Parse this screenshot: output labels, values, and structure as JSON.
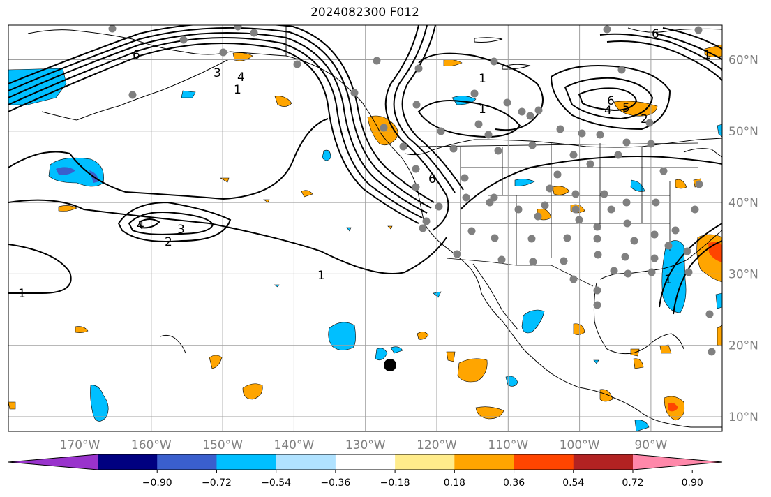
{
  "title": "2024082300 F012",
  "map": {
    "lon_ticks": [
      {
        "lon": -170,
        "label": "170°W"
      },
      {
        "lon": -160,
        "label": "160°W"
      },
      {
        "lon": -150,
        "label": "150°W"
      },
      {
        "lon": -140,
        "label": "140°W"
      },
      {
        "lon": -130,
        "label": "130°W"
      },
      {
        "lon": -120,
        "label": "120°W"
      },
      {
        "lon": -110,
        "label": "110°W"
      },
      {
        "lon": -100,
        "label": "100°W"
      },
      {
        "lon": -90,
        "label": "90°W"
      }
    ],
    "lat_ticks": [
      {
        "lat": 10,
        "label": "10°N"
      },
      {
        "lat": 20,
        "label": "20°N"
      },
      {
        "lat": 30,
        "label": "30°N"
      },
      {
        "lat": 40,
        "label": "40°N"
      },
      {
        "lat": 50,
        "label": "50°N"
      },
      {
        "lat": 60,
        "label": "60°N"
      }
    ],
    "contour_labels": [
      "1",
      "2",
      "3",
      "4",
      "5",
      "6"
    ],
    "grid_color": "#a0a0a0",
    "station_color": "#808080",
    "storm_marker_color": "#000000"
  },
  "colorbar": {
    "colors": [
      "#9933cc",
      "#000080",
      "#3a5fcd",
      "#00bfff",
      "#b0e2ff",
      "#ffffff",
      "#ffec8b",
      "#ffa500",
      "#ff4500",
      "#b22222",
      "#ff88aa"
    ],
    "tick_labels": [
      "−0.90",
      "−0.72",
      "−0.54",
      "−0.36",
      "−0.18",
      "0.18",
      "0.36",
      "0.54",
      "0.72",
      "0.90"
    ]
  }
}
